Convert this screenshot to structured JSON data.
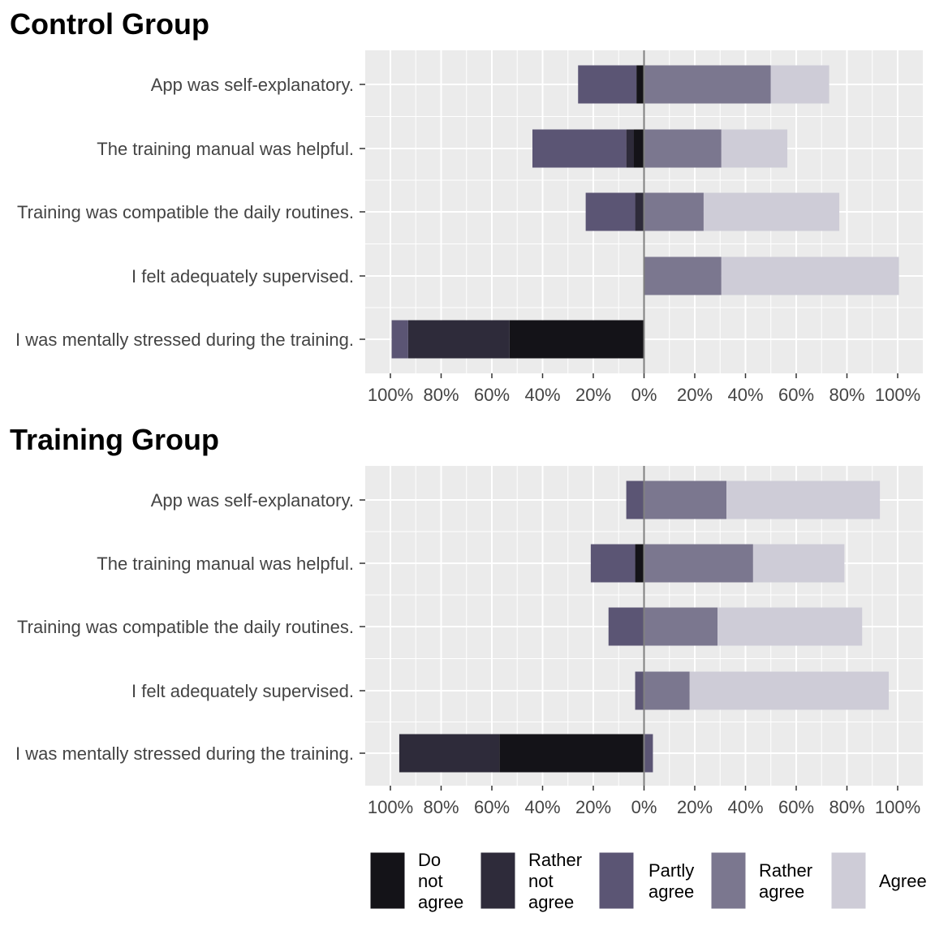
{
  "chart_data": [
    {
      "type": "bar",
      "orientation": "horizontal-diverging",
      "title": "Control Group",
      "categories": [
        "App was self-explanatory.",
        "The training manual was helpful.",
        "Training was compatible the daily routines.",
        "I felt adequately supervised.",
        "I was mentally stressed during the training."
      ],
      "series": [
        {
          "name": "Do not agree",
          "values": [
            -3,
            -4,
            0,
            0,
            -53
          ]
        },
        {
          "name": "Rather not agree",
          "values": [
            0,
            -3,
            -3.5,
            0,
            -40
          ]
        },
        {
          "name": "Partly agree",
          "values": [
            -23,
            -37,
            -19.5,
            0,
            -6.5
          ]
        },
        {
          "name": "Rather agree",
          "values": [
            50,
            30.5,
            23.5,
            30.5,
            0
          ]
        },
        {
          "name": "Agree",
          "values": [
            23,
            26,
            53.5,
            70,
            0
          ]
        }
      ],
      "xlim": [
        -100,
        100
      ],
      "ticks": [
        -100,
        -80,
        -60,
        -40,
        -20,
        0,
        20,
        40,
        60,
        80,
        100
      ],
      "tick_labels": [
        "100%",
        "80%",
        "60%",
        "40%",
        "20%",
        "0%",
        "20%",
        "40%",
        "60%",
        "80%",
        "100%"
      ],
      "grid": true
    },
    {
      "type": "bar",
      "orientation": "horizontal-diverging",
      "title": "Training Group",
      "categories": [
        "App was self-explanatory.",
        "The training manual was helpful.",
        "Training was compatible the daily routines.",
        "I felt adequately supervised.",
        "I was mentally stressed during the training."
      ],
      "series": [
        {
          "name": "Do not agree",
          "values": [
            0,
            -3.5,
            0,
            0,
            -57
          ]
        },
        {
          "name": "Rather not agree",
          "values": [
            0,
            0,
            0,
            0,
            -39.5
          ]
        },
        {
          "name": "Partly agree",
          "values": [
            -7,
            -17.5,
            -14,
            -3.5,
            3.5
          ]
        },
        {
          "name": "Rather agree",
          "values": [
            32.5,
            43,
            29,
            18,
            0
          ]
        },
        {
          "name": "Agree",
          "values": [
            60.5,
            36,
            57,
            78.5,
            0
          ]
        }
      ],
      "xlim": [
        -100,
        100
      ],
      "ticks": [
        -100,
        -80,
        -60,
        -40,
        -20,
        0,
        20,
        40,
        60,
        80,
        100
      ],
      "tick_labels": [
        "100%",
        "80%",
        "60%",
        "40%",
        "20%",
        "0%",
        "20%",
        "40%",
        "60%",
        "80%",
        "100%"
      ],
      "grid": true
    }
  ],
  "legend": {
    "placement": "bottom",
    "items": [
      {
        "name": "Do not agree",
        "lines": [
          "Do",
          "not",
          "agree"
        ],
        "color": "#141318"
      },
      {
        "name": "Rather not agree",
        "lines": [
          "Rather",
          "not",
          "agree"
        ],
        "color": "#2e2b3a"
      },
      {
        "name": "Partly agree",
        "lines": [
          "Partly",
          "agree"
        ],
        "color": "#5b5574"
      },
      {
        "name": "Rather agree",
        "lines": [
          "Rather",
          "agree"
        ],
        "color": "#7b778f"
      },
      {
        "name": "Agree",
        "lines": [
          "Agree"
        ],
        "color": "#ceccd7"
      }
    ]
  },
  "colors": {
    "panel_background": "#ebebeb",
    "grid": "#ffffff",
    "zero_line": "#808080"
  }
}
